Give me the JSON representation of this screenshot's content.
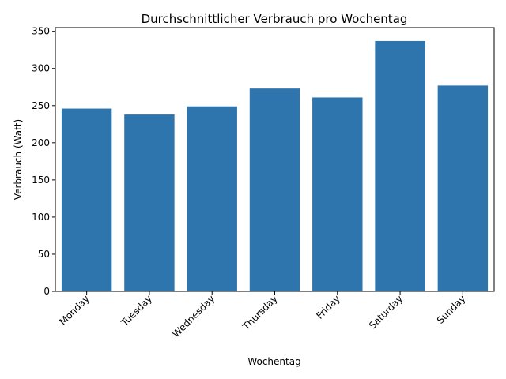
{
  "chart_data": {
    "type": "bar",
    "title": "Durchschnittlicher Verbrauch pro Wochentag",
    "xlabel": "Wochentag",
    "ylabel": "Verbrauch (Watt)",
    "categories": [
      "Monday",
      "Tuesday",
      "Wednesday",
      "Thursday",
      "Friday",
      "Saturday",
      "Sunday"
    ],
    "values": [
      246,
      238,
      249,
      273,
      261,
      337,
      277
    ],
    "ylim": [
      0,
      355
    ],
    "yticks": [
      0,
      50,
      100,
      150,
      200,
      250,
      300,
      350
    ],
    "bar_color": "#2e75ae",
    "grid": false,
    "x_tick_rotation": 45
  }
}
